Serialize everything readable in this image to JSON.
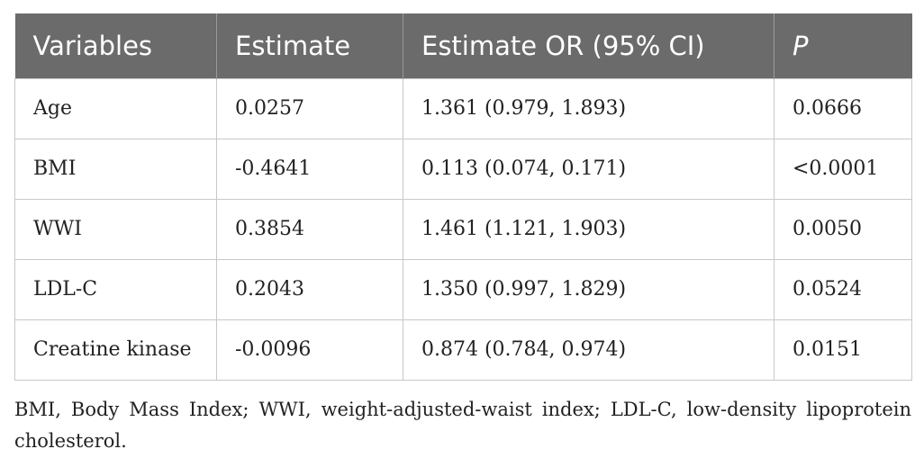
{
  "table": {
    "headers": [
      "Variables",
      "Estimate",
      "Estimate OR (95% CI)",
      "P"
    ],
    "rows": [
      [
        "Age",
        "0.0257",
        "1.361 (0.979, 1.893)",
        "0.0666"
      ],
      [
        "BMI",
        "-0.4641",
        "0.113 (0.074, 0.171)",
        "<0.0001"
      ],
      [
        "WWI",
        "0.3854",
        "1.461 (1.121, 1.903)",
        "0.0050"
      ],
      [
        "LDL-C",
        "0.2043",
        "1.350 (0.997, 1.829)",
        "0.0524"
      ],
      [
        "Creatine kinase",
        "-0.0096",
        "0.874 (0.784, 0.974)",
        "0.0151"
      ]
    ]
  },
  "footnote": "BMI, Body Mass Index; WWI, weight-adjusted-waist index; LDL-C, low-density lipoprotein cholesterol.",
  "colors": {
    "header_bg": "#6b6b6b",
    "header_text": "#ffffff",
    "border": "#c8c8c8"
  }
}
